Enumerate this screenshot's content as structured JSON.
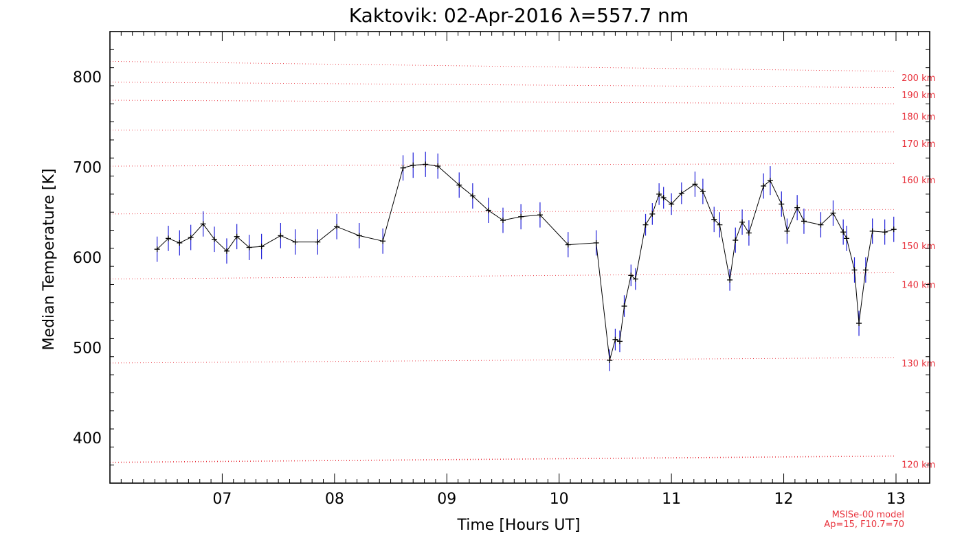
{
  "chart_data": {
    "type": "line",
    "title": "Kaktovik: 02-Apr-2016 λ=557.7 nm",
    "xlabel": "Time [Hours UT]",
    "ylabel": "Median Temperature [K]",
    "xlim": [
      6.0,
      13.3
    ],
    "ylim": [
      350,
      850
    ],
    "x_ticks": [
      7,
      8,
      9,
      10,
      11,
      12,
      13
    ],
    "x_tick_labels": [
      "07",
      "08",
      "09",
      "10",
      "11",
      "12",
      "13"
    ],
    "y_ticks": [
      400,
      500,
      600,
      700,
      800
    ],
    "y_tick_labels": [
      "400",
      "500",
      "600",
      "700",
      "800"
    ],
    "grid": false,
    "series": [
      {
        "color": "#000000",
        "error_color": "#1f1fd8",
        "x": [
          6.42,
          6.52,
          6.62,
          6.72,
          6.83,
          6.93,
          7.04,
          7.13,
          7.24,
          7.35,
          7.52,
          7.65,
          7.85,
          8.02,
          8.22,
          8.43,
          8.61,
          8.7,
          8.81,
          8.92,
          9.11,
          9.23,
          9.37,
          9.5,
          9.66,
          9.83,
          10.08,
          10.33,
          10.45,
          10.5,
          10.54,
          10.58,
          10.64,
          10.68,
          10.77,
          10.83,
          10.89,
          10.93,
          11.0,
          11.09,
          11.21,
          11.28,
          11.38,
          11.43,
          11.52,
          11.57,
          11.63,
          11.69,
          11.82,
          11.88,
          11.98,
          12.03,
          12.12,
          12.18,
          12.33,
          12.44,
          12.53,
          12.56,
          12.63,
          12.67,
          12.73,
          12.79,
          12.9,
          12.98
        ],
        "y": [
          609,
          621,
          616,
          622,
          637,
          620,
          607,
          623,
          611,
          612,
          624,
          617,
          617,
          634,
          624,
          618,
          699,
          702,
          703,
          701,
          680,
          668,
          652,
          641,
          645,
          647,
          614,
          616,
          486,
          509,
          507,
          546,
          580,
          576,
          636,
          648,
          670,
          666,
          659,
          671,
          681,
          673,
          642,
          636,
          575,
          619,
          639,
          627,
          679,
          685,
          659,
          629,
          655,
          640,
          636,
          649,
          628,
          621,
          586,
          527,
          586,
          629,
          628,
          631
        ],
        "err": [
          14,
          14,
          14,
          14,
          14,
          14,
          14,
          14,
          14,
          14,
          14,
          14,
          14,
          14,
          14,
          14,
          14,
          14,
          14,
          14,
          14,
          14,
          14,
          14,
          14,
          14,
          14,
          14,
          12,
          12,
          12,
          12,
          12,
          12,
          12,
          12,
          12,
          12,
          12,
          12,
          14,
          14,
          14,
          14,
          12,
          14,
          14,
          14,
          14,
          16,
          14,
          14,
          14,
          14,
          14,
          14,
          14,
          14,
          14,
          14,
          14,
          14,
          14,
          14
        ]
      }
    ],
    "model_lines": {
      "color": "#e8323c",
      "label_x": 13.05,
      "lines": [
        {
          "label": "120 km",
          "label_y": 371,
          "y_start": 373,
          "y_end": 380
        },
        {
          "label": "130 km",
          "label_y": 483,
          "y_start": 483,
          "y_end": 489
        },
        {
          "label": "140 km",
          "label_y": 570,
          "y_start": 576,
          "y_end": 583
        },
        {
          "label": "150 km",
          "label_y": 613,
          "y_start": 648,
          "y_end": 653
        },
        {
          "label": "160 km",
          "label_y": 686,
          "y_start": 701,
          "y_end": 704
        },
        {
          "label": "170 km",
          "label_y": 726,
          "y_start": 741,
          "y_end": 739
        },
        {
          "label": "180 km",
          "label_y": 756,
          "y_start": 774,
          "y_end": 770
        },
        {
          "label": "190 km",
          "label_y": 780,
          "y_start": 794,
          "y_end": 788
        },
        {
          "label": "200 km",
          "label_y": 799,
          "y_start": 817,
          "y_end": 806
        }
      ]
    },
    "notes": [
      "MSISe-00 model",
      "Ap=15, F10.7=70"
    ]
  }
}
